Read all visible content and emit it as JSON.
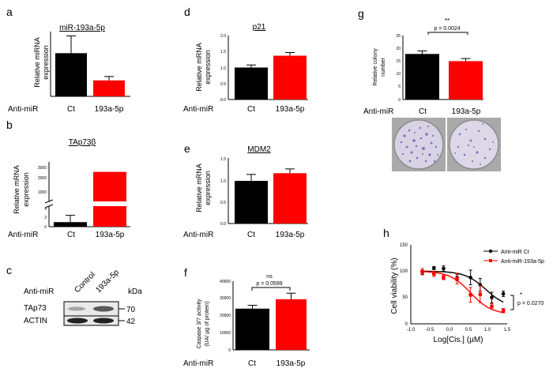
{
  "colors": {
    "black": "#000000",
    "red": "#ff0000",
    "grey": "#888888"
  },
  "chart_data": [
    {
      "id": "a",
      "type": "bar",
      "panel_label": "a",
      "title": "miR-193a-5p",
      "ylabel": [
        "Relative miRNA",
        "expression"
      ],
      "group_label": "Anti-miR",
      "categories": [
        "Ct",
        "193a-5p"
      ],
      "values": [
        1.0,
        0.37
      ],
      "errors": [
        0.4,
        0.09
      ],
      "bar_colors": [
        "#000000",
        "#ff0000"
      ],
      "ylim": [
        0,
        1.5
      ],
      "yticks": []
    },
    {
      "id": "b",
      "type": "bar",
      "panel_label": "b",
      "title": "TAp73β",
      "ylabel": [
        "Relative mRNA",
        "expression"
      ],
      "group_label": "Anti-miR",
      "categories": [
        "Ct",
        "193a-5p"
      ],
      "values": [
        1.0,
        2600
      ],
      "errors": [
        1.5,
        0
      ],
      "bar_colors": [
        "#000000",
        "#ff0000"
      ],
      "axis_break": true,
      "yticks": [
        "3000",
        "2000",
        "1000",
        "4",
        "2",
        "0"
      ]
    },
    {
      "id": "d",
      "type": "bar",
      "panel_label": "d",
      "title": "p21",
      "ylabel": [
        "Relative mRNA",
        "expression"
      ],
      "group_label": "Anti-miR",
      "categories": [
        "Ct",
        "193a-5p"
      ],
      "values": [
        1.0,
        1.37
      ],
      "errors": [
        0.08,
        0.1
      ],
      "bar_colors": [
        "#000000",
        "#ff0000"
      ],
      "ylim": [
        0,
        2.0
      ],
      "yticks": [
        "2.0",
        "1.5",
        "1.0",
        "0.5",
        "0.0"
      ]
    },
    {
      "id": "e",
      "type": "bar",
      "panel_label": "e",
      "title": "MDM2",
      "ylabel": [
        "Relative mRNA",
        "expression"
      ],
      "group_label": "Anti-miR",
      "categories": [
        "Ct",
        "193a-5p"
      ],
      "values": [
        1.0,
        1.18
      ],
      "errors": [
        0.15,
        0.1
      ],
      "bar_colors": [
        "#000000",
        "#ff0000"
      ],
      "ylim": [
        0,
        1.5
      ],
      "yticks": [
        "1.5",
        "1.0",
        "0.5",
        "0.0"
      ]
    },
    {
      "id": "f",
      "type": "bar",
      "panel_label": "f",
      "title": "",
      "ylabel": [
        "Caspase 3/7 activity",
        "(UA/ µg of protein)"
      ],
      "group_label": "Anti-miR",
      "categories": [
        "Ct",
        "193a-5p"
      ],
      "values": [
        24000,
        29500
      ],
      "errors": [
        2000,
        3500
      ],
      "bar_colors": [
        "#000000",
        "#ff0000"
      ],
      "ylim": [
        0,
        40000
      ],
      "yticks": [
        "40000",
        "30000",
        "20000",
        "10000",
        "0"
      ],
      "sig_label": "ns",
      "p_label": "p = 0.0599"
    },
    {
      "id": "g",
      "type": "bar",
      "panel_label": "g",
      "title": "",
      "ylabel": [
        "Relative colony",
        "number"
      ],
      "group_label": "Anti-miR",
      "categories": [
        "Ct",
        "193a-5p"
      ],
      "values": [
        17.8,
        15.0
      ],
      "errors": [
        1.2,
        1.0
      ],
      "bar_colors": [
        "#000000",
        "#ff0000"
      ],
      "ylim": [
        0,
        25
      ],
      "yticks": [
        "25",
        "20",
        "15",
        "10",
        "5",
        "0"
      ],
      "sig_label": "**",
      "p_label": "p = 0.0024"
    },
    {
      "id": "h",
      "type": "scatter",
      "panel_label": "h",
      "title": "",
      "xlabel": "Log[Cis.] (µM)",
      "ylabel": "Cell viability (%)",
      "xlim": [
        -1.0,
        1.5
      ],
      "ylim": [
        0,
        150
      ],
      "xticks": [
        "-1.0",
        "-0.5",
        "0.0",
        "0.5",
        "1.0",
        "1.5"
      ],
      "yticks": [
        "150",
        "100",
        "50",
        "0"
      ],
      "series": [
        {
          "name": "Anti-miR Ct",
          "color": "#000000",
          "marker": "circle",
          "x": [
            -0.7,
            -0.4,
            -0.15,
            0.2,
            0.55,
            0.8,
            1.1,
            1.4
          ],
          "y": [
            98,
            106,
            105,
            88,
            88,
            74,
            50,
            57
          ],
          "err": [
            4,
            3,
            5,
            6,
            14,
            12,
            10,
            5
          ],
          "fit_top": 100,
          "fit_bottom": 30,
          "fit_logec50": 0.95,
          "fit_slope": 1.6
        },
        {
          "name": "Anti-miR-193a-5p",
          "color": "#ff0000",
          "marker": "square",
          "x": [
            -0.7,
            -0.4,
            -0.15,
            0.2,
            0.55,
            0.8,
            1.1,
            1.4
          ],
          "y": [
            99,
            95,
            88,
            86,
            55,
            56,
            33,
            25
          ],
          "err": [
            6,
            5,
            4,
            10,
            14,
            16,
            5,
            4
          ],
          "fit_top": 100,
          "fit_bottom": 18,
          "fit_logec50": 0.55,
          "fit_slope": 1.6
        }
      ],
      "sig_label": "*",
      "p_label": "p = 0.0270"
    }
  ],
  "panel_c": {
    "label": "c",
    "group_label": "Anti-miR",
    "lanes": [
      "Control",
      "193a-5p"
    ],
    "kda_label": "kDa",
    "rows": [
      {
        "name": "TAp73",
        "kda": "70"
      },
      {
        "name": "ACTIN",
        "kda": "42"
      }
    ]
  }
}
